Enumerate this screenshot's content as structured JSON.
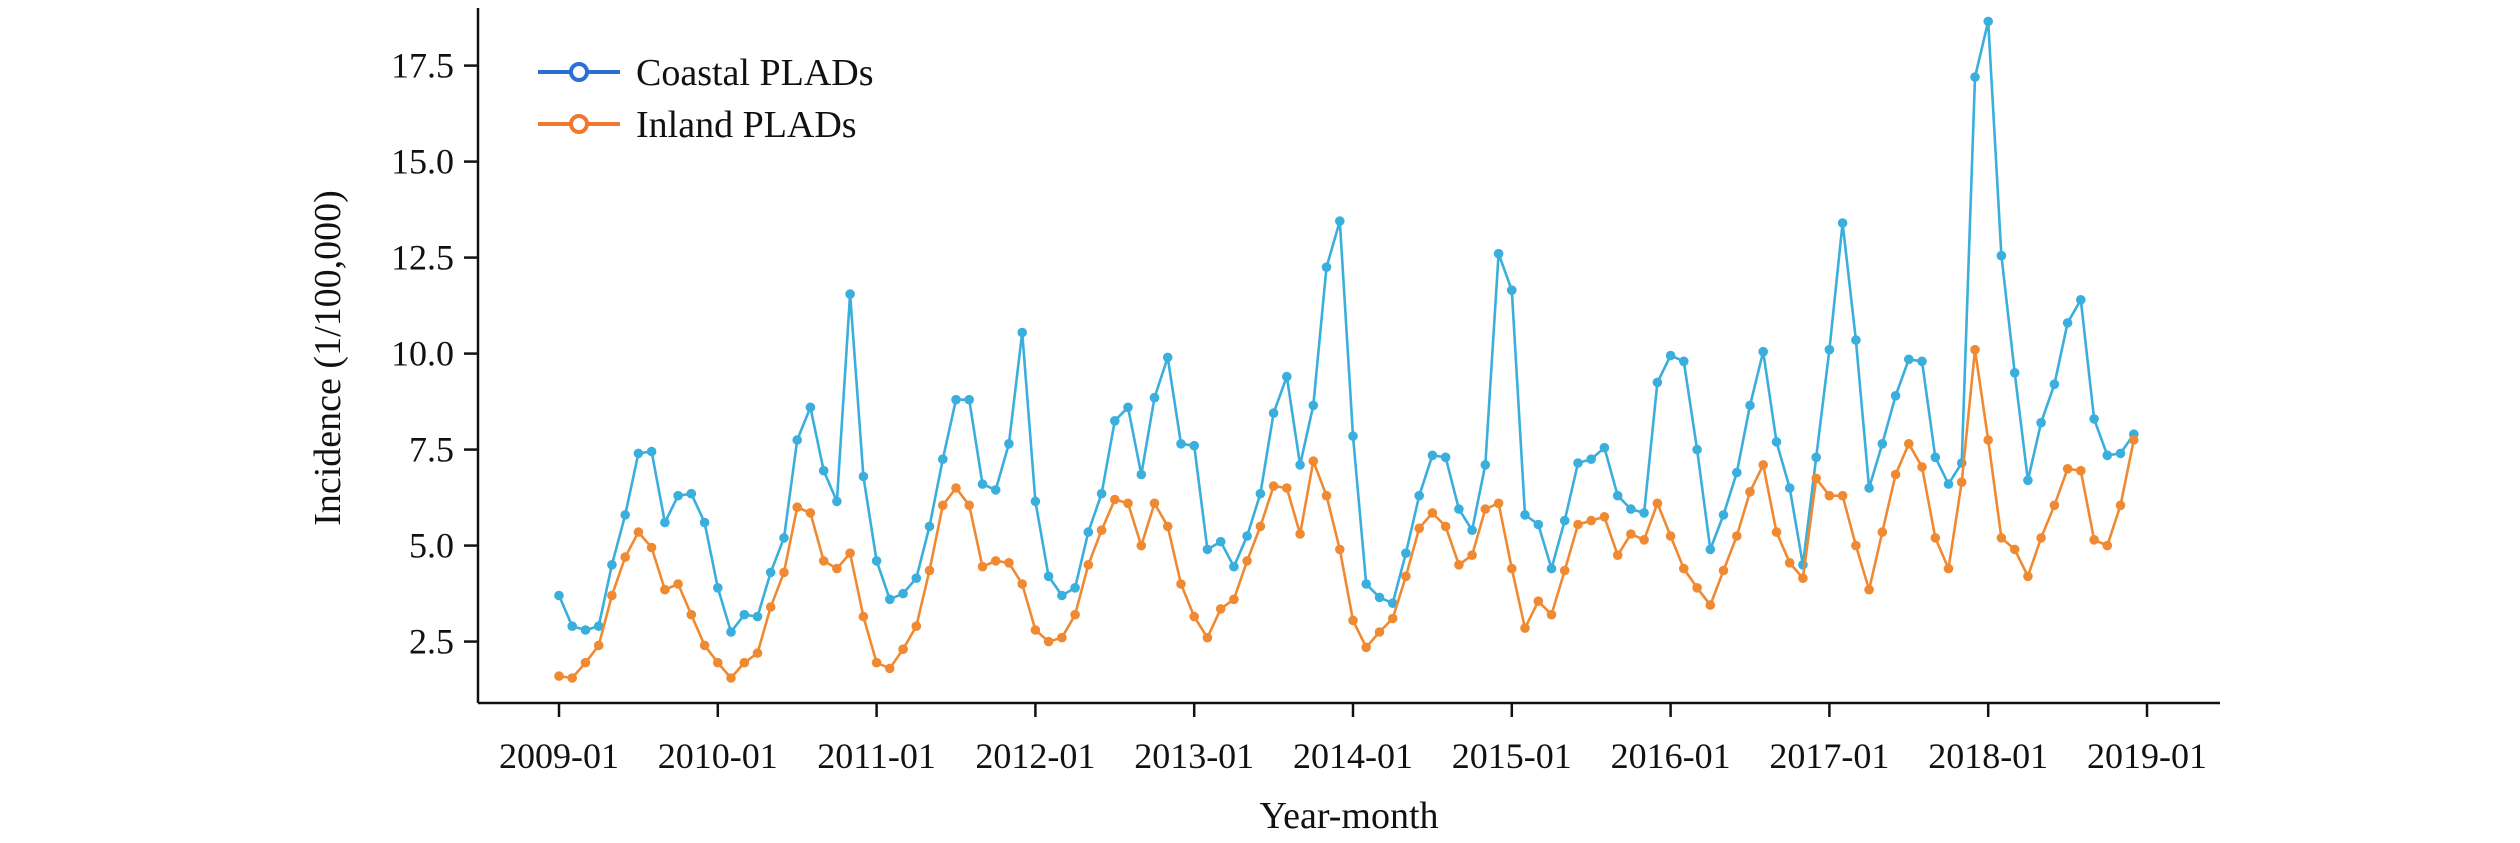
{
  "chart_data": {
    "type": "line",
    "title": "",
    "xlabel": "Year-month",
    "ylabel": "Incidence (1/100,000)",
    "x_start": "2009-01",
    "x_end": "2018-12",
    "x_ticks": [
      "2009-01",
      "2010-01",
      "2011-01",
      "2012-01",
      "2013-01",
      "2014-01",
      "2015-01",
      "2016-01",
      "2017-01",
      "2018-01",
      "2019-01"
    ],
    "y_ticks": [
      "2.5",
      "5.0",
      "7.5",
      "10.0",
      "12.5",
      "15.0",
      "17.5"
    ],
    "ylim": [
      0.9,
      19.0
    ],
    "grid": false,
    "legend_position": "top-left",
    "series": [
      {
        "name": "Coastal PLADs",
        "legend_color": "#2b6fd0",
        "color": "#3aaedc",
        "values": [
          3.7,
          2.9,
          2.8,
          2.9,
          4.5,
          5.8,
          7.4,
          7.45,
          5.6,
          6.3,
          6.35,
          5.6,
          3.9,
          2.75,
          3.2,
          3.15,
          4.3,
          5.2,
          7.75,
          8.6,
          6.95,
          6.15,
          11.55,
          6.8,
          4.6,
          3.6,
          3.75,
          4.15,
          5.5,
          7.25,
          8.8,
          8.8,
          6.6,
          6.45,
          7.65,
          10.55,
          6.15,
          4.2,
          3.7,
          3.9,
          5.35,
          6.35,
          8.25,
          8.6,
          6.85,
          8.85,
          9.9,
          7.65,
          7.6,
          4.9,
          5.1,
          4.45,
          5.25,
          6.35,
          8.45,
          9.4,
          7.1,
          8.65,
          12.25,
          13.45,
          7.85,
          4.0,
          3.65,
          3.5,
          4.8,
          6.3,
          7.35,
          7.3,
          5.95,
          5.4,
          7.1,
          12.6,
          11.65,
          5.8,
          5.55,
          4.4,
          5.65,
          7.15,
          7.25,
          7.55,
          6.3,
          5.95,
          5.85,
          9.25,
          9.95,
          9.8,
          7.5,
          4.9,
          5.8,
          6.9,
          8.65,
          10.05,
          7.7,
          6.5,
          4.5,
          7.3,
          10.1,
          13.4,
          10.35,
          6.5,
          7.65,
          8.9,
          9.85,
          9.8,
          7.3,
          6.6,
          7.15,
          17.2,
          18.65,
          12.55,
          9.5,
          6.7,
          8.2,
          9.2,
          10.8,
          11.4,
          8.3,
          7.35,
          7.4,
          7.9
        ]
      },
      {
        "name": "Inland PLADs",
        "legend_color": "#f07830",
        "color": "#f08a32",
        "values": [
          1.6,
          1.55,
          1.95,
          2.4,
          3.7,
          4.7,
          5.35,
          4.95,
          3.85,
          4.0,
          3.2,
          2.4,
          1.95,
          1.55,
          1.95,
          2.2,
          3.4,
          4.3,
          6.0,
          5.85,
          4.6,
          4.4,
          4.8,
          3.15,
          1.95,
          1.8,
          2.3,
          2.9,
          4.35,
          6.05,
          6.5,
          6.05,
          4.45,
          4.6,
          4.55,
          4.0,
          2.8,
          2.5,
          2.6,
          3.2,
          4.5,
          5.4,
          6.2,
          6.1,
          5.0,
          6.1,
          5.5,
          4.0,
          3.15,
          2.6,
          3.35,
          3.6,
          4.6,
          5.5,
          6.55,
          6.5,
          5.3,
          7.2,
          6.3,
          4.9,
          3.05,
          2.35,
          2.75,
          3.1,
          4.2,
          5.45,
          5.85,
          5.5,
          4.5,
          4.75,
          5.95,
          6.1,
          4.4,
          2.85,
          3.55,
          3.2,
          4.35,
          5.55,
          5.65,
          5.75,
          4.75,
          5.3,
          5.15,
          6.1,
          5.25,
          4.4,
          3.9,
          3.45,
          4.35,
          5.25,
          6.4,
          7.1,
          5.35,
          4.55,
          4.15,
          6.75,
          6.3,
          6.3,
          5.0,
          3.85,
          5.35,
          6.85,
          7.65,
          7.05,
          5.2,
          4.4,
          6.65,
          10.1,
          7.75,
          5.2,
          4.9,
          4.2,
          5.2,
          6.05,
          7.0,
          6.95,
          5.15,
          5.0,
          6.05,
          7.75
        ]
      }
    ]
  }
}
